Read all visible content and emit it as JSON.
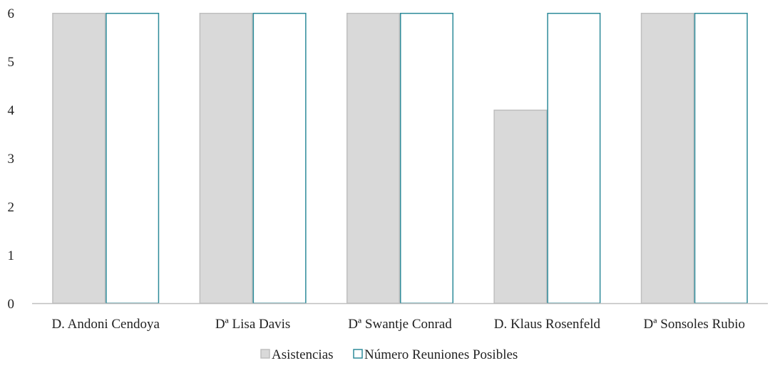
{
  "chart_data": {
    "type": "bar",
    "title": "",
    "xlabel": "",
    "ylabel": "",
    "categories": [
      "D. Andoni Cendoya",
      "Dª Lisa Davis",
      "Dª Swantje Conrad",
      "D. Klaus Rosenfeld",
      "Dª Sonsoles Rubio"
    ],
    "series": [
      {
        "name": "Asistencias",
        "values": [
          6,
          6,
          6,
          4,
          6
        ],
        "fill": "#d9d9d9",
        "stroke": "#bfbfbf"
      },
      {
        "name": "Número Reuniones Posibles",
        "values": [
          6,
          6,
          6,
          6,
          6
        ],
        "fill": "#ffffff",
        "stroke": "#2e8b9a"
      }
    ],
    "ylim": [
      0,
      6
    ],
    "yticks": [
      0,
      1,
      2,
      3,
      4,
      5,
      6
    ],
    "grid": false,
    "legend_position": "bottom-center"
  }
}
